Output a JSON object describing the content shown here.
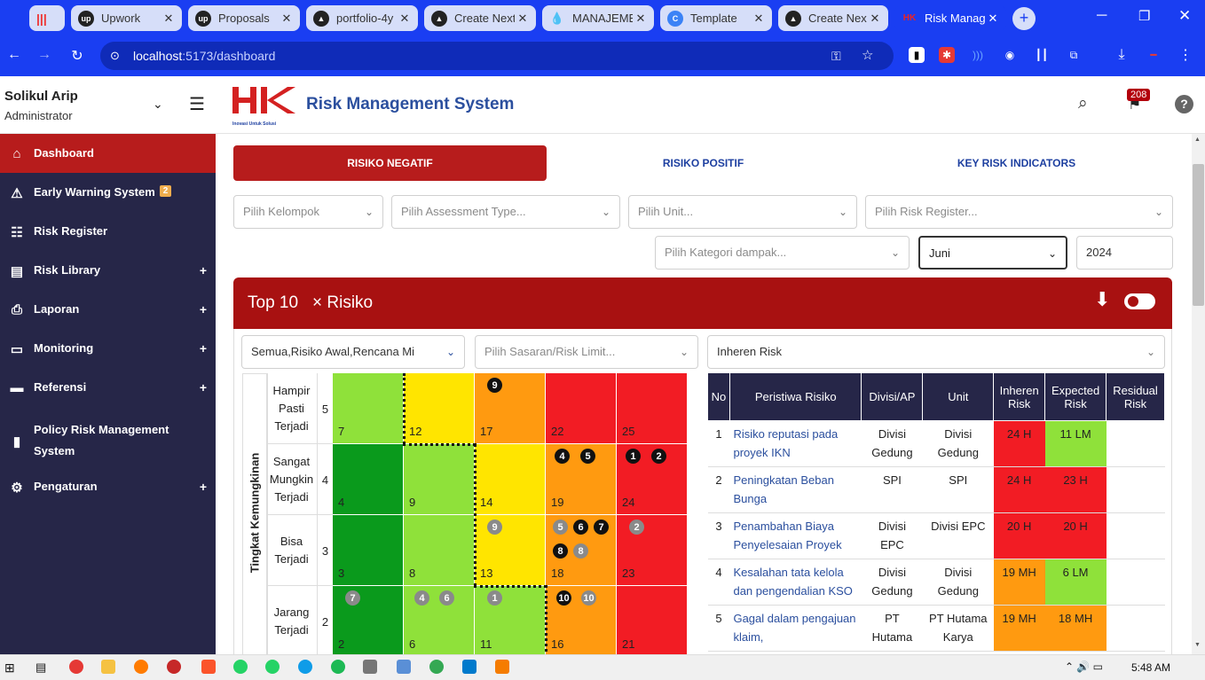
{
  "browser": {
    "tabs": [
      {
        "label": "",
        "icon": "recording-icon"
      },
      {
        "label": "Upwork",
        "icon": "upwork-icon"
      },
      {
        "label": "Proposals",
        "icon": "upwork-icon"
      },
      {
        "label": "portfolio-4y",
        "icon": "vercel-icon"
      },
      {
        "label": "Create Next",
        "icon": "vercel-icon"
      },
      {
        "label": "MANAJEME",
        "icon": "drop-icon"
      },
      {
        "label": "Template",
        "icon": "template-icon"
      },
      {
        "label": "Create Nex",
        "icon": "vercel-icon"
      },
      {
        "label": "Risk Manag",
        "icon": "hk-icon"
      }
    ],
    "url_host": "localhost",
    "url_path": ":5173/dashboard"
  },
  "header": {
    "user_name": "Solikul Arip",
    "user_role": "Administrator",
    "app_title": "Risk Management System",
    "logo_tagline": "Inovasi Untuk Solusi",
    "notif_count": "208"
  },
  "sidebar": {
    "items": [
      {
        "label": "Dashboard",
        "icon": "home-icon"
      },
      {
        "label": "Early Warning System",
        "icon": "warning-icon",
        "badge": "2"
      },
      {
        "label": "Risk Register",
        "icon": "list-icon"
      },
      {
        "label": "Risk Library",
        "icon": "library-icon",
        "plus": "+"
      },
      {
        "label": "Laporan",
        "icon": "printer-icon",
        "plus": "+"
      },
      {
        "label": "Monitoring",
        "icon": "laptop-icon",
        "plus": "+"
      },
      {
        "label": "Referensi",
        "icon": "folder-icon",
        "plus": "+"
      },
      {
        "label": "Policy Risk Management",
        "label2": "System",
        "icon": "book-icon"
      },
      {
        "label": "Pengaturan",
        "icon": "gear-icon",
        "plus": "+"
      }
    ]
  },
  "tabs": {
    "negatif": "RISIKO NEGATIF",
    "positif": "RISIKO POSITIF",
    "kri": "KEY RISK INDICATORS"
  },
  "filters": {
    "kelompok": "Pilih Kelompok",
    "assessment": "Pilih Assessment Type...",
    "unit": "Pilih Unit...",
    "register": "Pilih Risk Register...",
    "kategori": "Pilih Kategori dampak...",
    "bulan": "Juni",
    "tahun": "2024"
  },
  "panel": {
    "title": "Top 10",
    "tag": "× Risiko",
    "filter_risk_type": "Semua,Risiko Awal,Rencana Mi",
    "filter_sasaran": "Pilih Sasaran/Risk Limit...",
    "filter_inheren": "Inheren Risk"
  },
  "matrix": {
    "y_axis_label": "Tingkat Kemungkinan",
    "rows": [
      {
        "label1": "Hampir",
        "label2": "Pasti",
        "label3": "Terjadi",
        "level": "5",
        "cells": [
          "7",
          "12",
          "17",
          "22",
          "25"
        ]
      },
      {
        "label1": "Sangat",
        "label2": "Mungkin",
        "label3": "Terjadi",
        "level": "4",
        "cells": [
          "4",
          "9",
          "14",
          "19",
          "24"
        ]
      },
      {
        "label1": "Bisa",
        "label2": "Terjadi",
        "label3": "",
        "level": "3",
        "cells": [
          "3",
          "8",
          "13",
          "18",
          "23"
        ]
      },
      {
        "label1": "Jarang",
        "label2": "Terjadi",
        "label3": "",
        "level": "2",
        "cells": [
          "2",
          "6",
          "11",
          "16",
          "21"
        ]
      }
    ],
    "colors": {
      "dark_green": "#0a9a1c",
      "light_green": "#8fe13a",
      "yellow": "#ffe500",
      "orange": "#ff9a10",
      "red": "#f21c24"
    }
  },
  "table": {
    "headers": [
      "No",
      "Peristiwa Risiko",
      "Divisi/AP",
      "Unit",
      "Inheren Risk",
      "Expected Risk",
      "Residual Risk"
    ],
    "rows": [
      {
        "no": "1",
        "peristiwa": "Risiko reputasi pada proyek IKN",
        "divisi": "Divisi Gedung",
        "unit": "Divisi Gedung",
        "inheren": "24 H",
        "expected": "11 LM",
        "residual": ""
      },
      {
        "no": "2",
        "peristiwa": "Peningkatan Beban Bunga",
        "divisi": "SPI",
        "unit": "SPI",
        "inheren": "24 H",
        "expected": "23 H",
        "residual": ""
      },
      {
        "no": "3",
        "peristiwa": "Penambahan Biaya Penyelesaian Proyek",
        "divisi": "Divisi EPC",
        "unit": "Divisi EPC",
        "inheren": "20 H",
        "expected": "20 H",
        "residual": ""
      },
      {
        "no": "4",
        "peristiwa": "Kesalahan tata kelola dan pengendalian KSO",
        "divisi": "Divisi Gedung",
        "unit": "Divisi Gedung",
        "inheren": "19 MH",
        "expected": "6 LM",
        "residual": ""
      },
      {
        "no": "5",
        "peristiwa": "Gagal dalam pengajuan klaim,",
        "divisi": "PT Hutama",
        "unit": "PT Hutama Karya",
        "inheren": "19 MH",
        "expected": "18 MH",
        "residual": ""
      }
    ]
  },
  "taskbar": {
    "time": "5:48 AM"
  }
}
